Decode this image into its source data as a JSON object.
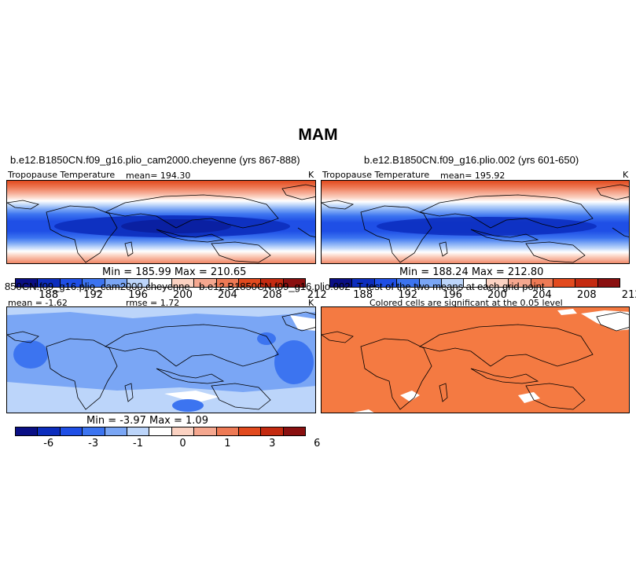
{
  "figure": {
    "title": "MAM"
  },
  "panels": [
    {
      "case_title": "b.e12.B1850CN.f09_g16.plio_cam2000.cheyenne (yrs 867-888)",
      "variable": "Tropopause Temperature",
      "mean_text": "mean= 194.30",
      "units": "K",
      "minmax_text": "Min = 185.99 Max = 210.65"
    },
    {
      "case_title": "b.e12.B1850CN.f09_g16.plio.002 (yrs 601-650)",
      "variable": "Tropopause Temperature",
      "mean_text": "mean= 195.92",
      "units": "K",
      "minmax_text": "Min = 188.24 Max = 212.80"
    },
    {
      "case_title": "850CN.f09_g16.plio_cam2000.cheyenne - b.e12.B1850CN.f09_g16.plio.002",
      "mean_text": "mean = -1.62",
      "rmse_text": "rmse = 1.72",
      "units": "K",
      "minmax_text": "Min = -3.97 Max = 1.09"
    },
    {
      "case_title": "T-test of the two means at each grid point",
      "subtitle": "Colored cells are significant at the 0.05 level"
    }
  ],
  "colorbars": {
    "abs": {
      "colors": [
        "#0a0f85",
        "#0c2dbd",
        "#1f4fe6",
        "#3c74f0",
        "#7aa6f5",
        "#bcd5fa",
        "#ffffff",
        "#fbd2c2",
        "#f5a78f",
        "#ee7a55",
        "#e24a1e",
        "#c42a10",
        "#8a1010"
      ],
      "tick_labels": [
        "188",
        "192",
        "196",
        "200",
        "204",
        "208",
        "212"
      ]
    },
    "diff": {
      "colors": [
        "#0a0f85",
        "#0c2dbd",
        "#1f4fe6",
        "#3c74f0",
        "#7aa6f5",
        "#bcd5fa",
        "#ffffff",
        "#fbd2c2",
        "#f5a78f",
        "#ee7a55",
        "#e24a1e",
        "#c42a10",
        "#8a1010"
      ],
      "tick_labels": [
        "-6",
        "-3",
        "-1",
        "0",
        "1",
        "3",
        "6"
      ]
    }
  },
  "colors": {
    "significant_fill": "#f47a42",
    "coastline": "#000000"
  }
}
